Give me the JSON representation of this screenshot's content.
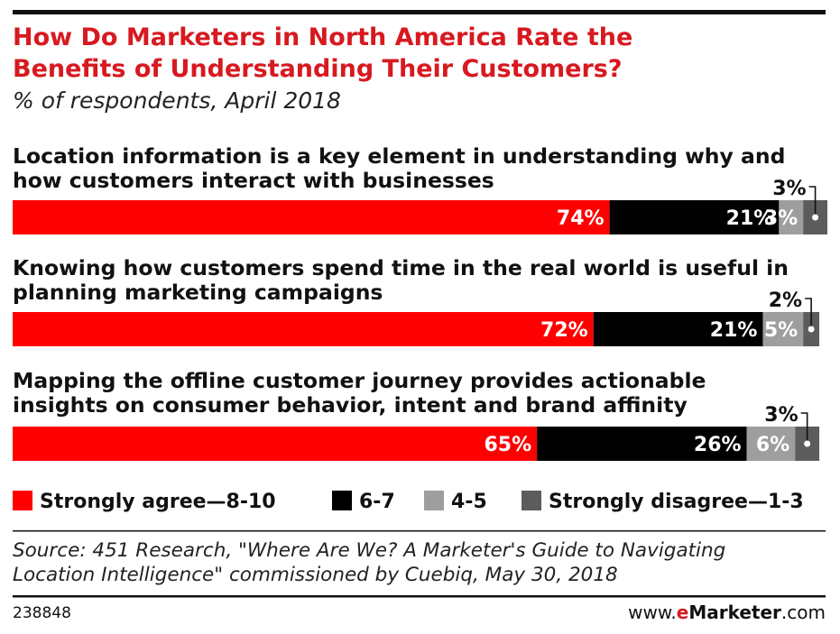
{
  "chart_data": {
    "type": "bar",
    "orientation": "horizontal-stacked",
    "title": "How Do Marketers in North America Rate the Benefits of Understanding Their Customers?",
    "title_lines": [
      "How Do Marketers in North America Rate the",
      "Benefits of Understanding Their Customers?"
    ],
    "subtitle": "% of respondents, April 2018",
    "categories": [
      "Location information is a key element in understanding why and how customers interact with businesses",
      "Knowing how customers spend time in the real world is useful in planning marketing campaigns",
      "Mapping the offline customer journey provides actionable insights on consumer behavior, intent and brand affinity"
    ],
    "category_lines": [
      [
        "Location information is a key element in understanding why and",
        "how customers interact with businesses"
      ],
      [
        "Knowing how customers spend time in the real world is useful in",
        "planning marketing campaigns"
      ],
      [
        "Mapping the offline customer journey provides actionable",
        "insights on consumer behavior, intent and brand affinity"
      ]
    ],
    "series": [
      {
        "name": "Strongly agree—8-10",
        "color": "#ff0000",
        "values": [
          74,
          72,
          65
        ]
      },
      {
        "name": "6-7",
        "color": "#000000",
        "values": [
          21,
          21,
          26
        ]
      },
      {
        "name": "4-5",
        "color": "#9e9e9e",
        "values": [
          3,
          5,
          6
        ]
      },
      {
        "name": "Strongly disagree—1-3",
        "color": "#5c5c5c",
        "values": [
          3,
          2,
          3
        ]
      }
    ],
    "xlim": [
      0,
      101
    ],
    "legend": "bottom",
    "source_lines": [
      "Source: 451 Research, \"Where Are We? A Marketer's Guide to Navigating",
      "Location Intelligence\" commissioned by Cuebiq, May 30, 2018"
    ]
  },
  "footer": {
    "id": "238848",
    "brand_prefix": "www.",
    "brand_e": "e",
    "brand_name": "Marketer",
    "brand_suffix": ".com"
  }
}
